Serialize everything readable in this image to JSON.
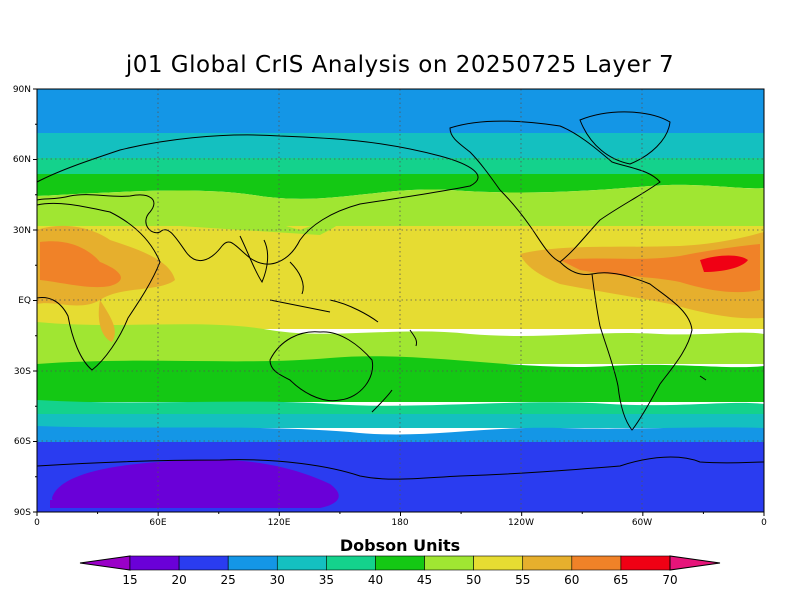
{
  "title": "j01 Global CrIS Analysis on 20250725 Layer 7",
  "lat_ticks": [
    "90N",
    "60N",
    "30N",
    "EQ",
    "30S",
    "60S",
    "90S"
  ],
  "lon_ticks": [
    "0",
    "60E",
    "120E",
    "180",
    "120W",
    "60W",
    "0"
  ],
  "colorbar": {
    "title": "Dobson Units",
    "labels": [
      "15",
      "20",
      "25",
      "30",
      "35",
      "40",
      "45",
      "50",
      "55",
      "60",
      "65",
      "70"
    ],
    "colors": [
      "#9a00c8",
      "#6a00d8",
      "#2a3cf0",
      "#1496e6",
      "#14c0c0",
      "#14d28c",
      "#14c814",
      "#a0e632",
      "#e6dc32",
      "#e6af2d",
      "#f08228",
      "#f00014",
      "#e6147a"
    ]
  },
  "chart_data": {
    "type": "heatmap",
    "title": "j01 Global CrIS Analysis on 20250725 Layer 7",
    "units": "Dobson Units",
    "lon_range": [
      0,
      360
    ],
    "lat_range": [
      -90,
      90
    ],
    "approx_zonal_bands": [
      {
        "lat": [
          72,
          90
        ],
        "value": 28
      },
      {
        "lat": [
          62,
          72
        ],
        "value": 33
      },
      {
        "lat": [
          52,
          62
        ],
        "value": 38
      },
      {
        "lat": [
          45,
          52
        ],
        "value": 43
      },
      {
        "lat": [
          32,
          45
        ],
        "value": 48
      },
      {
        "lat": [
          -10,
          32
        ],
        "value": 53
      },
      {
        "lat": [
          -25,
          -10
        ],
        "value": 48
      },
      {
        "lat": [
          -42,
          -25
        ],
        "value": 43
      },
      {
        "lat": [
          -48,
          -42
        ],
        "value": 38
      },
      {
        "lat": [
          -57,
          -48
        ],
        "value": 33
      },
      {
        "lat": [
          -63,
          -57
        ],
        "value": 28
      },
      {
        "lat": [
          -90,
          -63
        ],
        "value": 23
      }
    ],
    "features": [
      {
        "name": "Antarctic minimum",
        "value": 17
      },
      {
        "name": "North Africa / Arabia maximum",
        "value": 58
      },
      {
        "name": "Tropical Atlantic maximum",
        "value": 68
      }
    ]
  }
}
